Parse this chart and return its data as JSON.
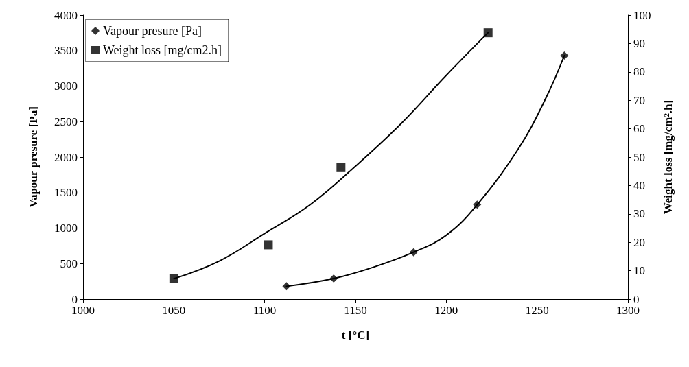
{
  "chart_data": {
    "type": "scatter",
    "xlabel": "t [°C]",
    "ylabel": "Vapour presure [Pa]",
    "y2label": "Weight loss [mg/cm$^{2}$.h]",
    "xlim": [
      1000,
      1300
    ],
    "xticks": [
      1000,
      1050,
      1100,
      1150,
      1200,
      1250,
      1300
    ],
    "ylim": [
      0,
      4000
    ],
    "yticks": [
      0,
      500,
      1000,
      1500,
      2000,
      2500,
      3000,
      3500,
      4000
    ],
    "y2lim": [
      0,
      100
    ],
    "y2ticks": [
      0,
      10,
      20,
      30,
      40,
      50,
      60,
      70,
      80,
      90,
      100
    ],
    "grid": false,
    "legend": "top left",
    "series": [
      {
        "name": "Vapour presure [Pa]",
        "marker": "diamond",
        "color": "#000000",
        "x": [
          1112,
          1138,
          1182,
          1217,
          1265
        ],
        "values": [
          180,
          290,
          660,
          1330,
          3430
        ]
      },
      {
        "name": "Weight loss [mg/cm2.h]",
        "marker": "square",
        "axis": "y2",
        "color": "#000000",
        "x": [
          1050,
          1102,
          1142,
          1223
        ],
        "values": [
          7.2,
          19.1,
          46.3,
          93.8
        ]
      },
      {
        "type": "line",
        "marker": "none",
        "color": "#000000",
        "x": [
          1112,
          1138,
          1160,
          1182,
          1200,
          1217,
          1240,
          1255,
          1265
        ],
        "values": [
          180,
          290,
          450,
          660,
          900,
          1330,
          2130,
          2840,
          3430
        ]
      },
      {
        "type": "line",
        "marker": "none",
        "axis": "y2",
        "color": "#000000",
        "x": [
          1050,
          1075,
          1100,
          1125,
          1150,
          1175,
          1200,
          1223
        ],
        "values": [
          7.2,
          13.4,
          23.1,
          33.2,
          46.8,
          61.7,
          78.8,
          93.8
        ]
      }
    ]
  }
}
